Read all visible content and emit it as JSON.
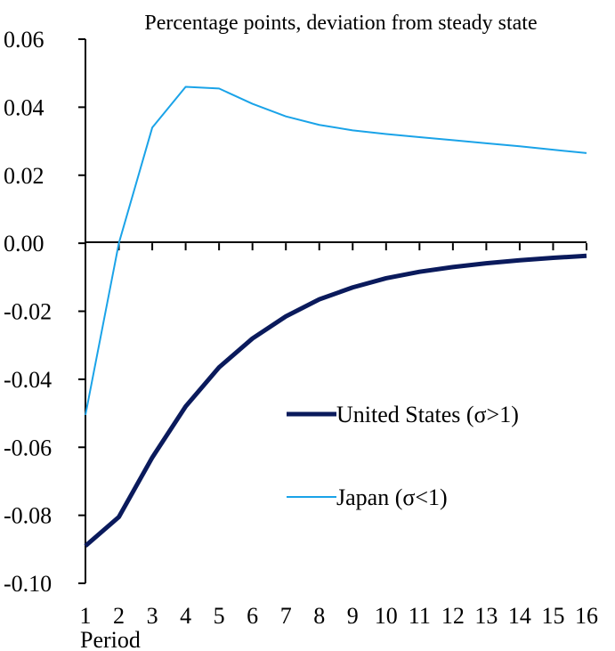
{
  "chart_data": {
    "type": "line",
    "title": "Percentage points, deviation from steady state",
    "xlabel": "Period",
    "ylabel": "",
    "x": [
      1,
      2,
      3,
      4,
      5,
      6,
      7,
      8,
      9,
      10,
      11,
      12,
      13,
      14,
      15,
      16
    ],
    "xlim": [
      1,
      16
    ],
    "ylim": [
      -0.1,
      0.06
    ],
    "yticks": [
      "0.06",
      "0.04",
      "0.02",
      "0.00",
      "-0.02",
      "-0.04",
      "-0.06",
      "-0.08",
      "-0.10"
    ],
    "ytick_values": [
      0.06,
      0.04,
      0.02,
      0.0,
      -0.02,
      -0.04,
      -0.06,
      -0.08,
      -0.1
    ],
    "grid": false,
    "legend_position": "lower-right",
    "series": [
      {
        "name": "United States (σ>1)",
        "color": "#0a1a5c",
        "values": [
          -0.089,
          -0.0805,
          -0.063,
          -0.048,
          -0.0365,
          -0.028,
          -0.0215,
          -0.0165,
          -0.013,
          -0.0103,
          -0.0084,
          -0.007,
          -0.0059,
          -0.005,
          -0.0043,
          -0.0037
        ]
      },
      {
        "name": "Japan (σ<1)",
        "color": "#1aa3e8",
        "values": [
          -0.0505,
          0.0,
          0.034,
          0.046,
          0.0455,
          0.041,
          0.0373,
          0.0348,
          0.0332,
          0.0321,
          0.0312,
          0.0303,
          0.0294,
          0.0285,
          0.0275,
          0.0265
        ]
      }
    ]
  }
}
